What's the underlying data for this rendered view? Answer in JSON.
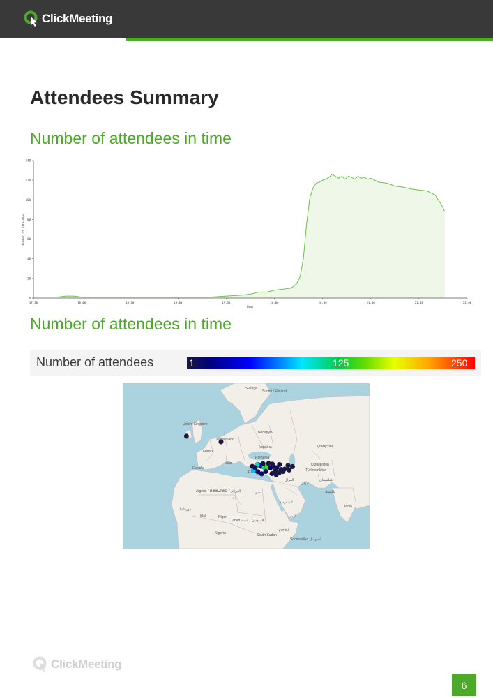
{
  "header": {
    "brand": "ClickMeeting",
    "accent_color": "#4ea82a",
    "bar_color": "#3a3939",
    "logo_icon": "clickmeeting-logo-icon"
  },
  "page": {
    "title": "Attendees Summary",
    "number": "6"
  },
  "sections": [
    {
      "heading": "Number of attendees in time"
    },
    {
      "heading": "Number of attendees in time"
    }
  ],
  "chart_data": {
    "type": "area",
    "title": "",
    "xlabel": "Hour",
    "ylabel": "Number of attendees",
    "x_ticks": [
      "17:30",
      "18:00",
      "18:30",
      "19:00",
      "19:30",
      "20:00",
      "20:30",
      "21:00",
      "21:30",
      "22:00"
    ],
    "y_ticks": [
      0,
      20,
      40,
      60,
      80,
      100,
      120,
      140
    ],
    "xlim": [
      "17:30",
      "22:00"
    ],
    "ylim": [
      0,
      140
    ],
    "grid": false,
    "line_color": "#6cc04a",
    "fill_color": "#eef7e8",
    "series": [
      {
        "x": [
          "17:45",
          "17:50",
          "17:55",
          "18:00",
          "18:10",
          "18:20",
          "18:30",
          "18:40",
          "18:50",
          "19:00",
          "19:10",
          "19:20",
          "19:30",
          "19:40",
          "19:45",
          "19:50",
          "19:55",
          "20:00",
          "20:05",
          "20:10",
          "20:12",
          "20:14",
          "20:16",
          "20:18",
          "20:20",
          "20:22",
          "20:24",
          "20:26",
          "20:28",
          "20:30",
          "20:32",
          "20:34",
          "20:36",
          "20:38",
          "20:40",
          "20:42",
          "20:44",
          "20:46",
          "20:48",
          "20:50",
          "20:52",
          "20:54",
          "20:56",
          "20:58",
          "21:00",
          "21:05",
          "21:10",
          "21:15",
          "21:20",
          "21:25",
          "21:30",
          "21:35",
          "21:40",
          "21:42",
          "21:44",
          "21:46"
        ],
        "values": [
          1,
          2,
          2,
          1,
          1,
          1,
          1,
          1,
          1,
          1,
          1,
          1,
          2,
          3,
          4,
          6,
          6,
          8,
          9,
          10,
          12,
          15,
          22,
          40,
          75,
          102,
          112,
          117,
          118,
          120,
          121,
          123,
          126,
          124,
          122,
          124,
          121,
          124,
          123,
          121,
          124,
          122,
          123,
          121,
          122,
          118,
          117,
          114,
          113,
          111,
          110,
          109,
          105,
          100,
          95,
          88
        ]
      }
    ]
  },
  "legend": {
    "label": "Number of attendees",
    "min": "1",
    "mid": "125",
    "max": "250",
    "colors": [
      "#1a1a3e",
      "#000080",
      "#0000ff",
      "#00e6ff",
      "#00cc44",
      "#66dd00",
      "#e8ff00",
      "#ffa500",
      "#ff0000"
    ]
  },
  "map": {
    "labels": {
      "sweden": "Sverige",
      "finland": "Suomi / Finland",
      "uk": "United Kingdom",
      "germany": "Deutschland",
      "france": "France",
      "belarus": "Беларусь",
      "ukraine": "Україна",
      "romania": "România",
      "italy": "Italia",
      "spain": "España",
      "kazakhstan": "Қазақстан",
      "uzbekistan": "O'zbekiston",
      "turkmenistan": "Türkmenistan",
      "algeria": "Algérie / ⵍⵣⵣⴰⵢⴻⵔ / الجزائر",
      "mali": "Mali",
      "niger": "Niger",
      "tchad": "Tchad تشاد",
      "sudan": "السودان",
      "nigeria": "Nigeria",
      "south_sudan": "South Sudan",
      "ethiopia": "ኢትዮጵያ",
      "somalia": "Soomaaliya الصومال",
      "saudi": "السعودية",
      "yemen": "اليمن",
      "iraq": "العراق",
      "iran": "ایران",
      "afghanistan": "افغانستان",
      "pakistan": "پاکستان",
      "india": "India",
      "egypt": "مصر",
      "libya": "ليبيا",
      "mauritania": "موريتانيا",
      "greece": "Ελλάς"
    },
    "points": [
      {
        "lon": -3.0,
        "lat": 53.5,
        "count": 1
      },
      {
        "lon": 12.5,
        "lat": 51.0,
        "count": 1
      },
      {
        "lon": 30.5,
        "lat": 40.2,
        "count": 2
      },
      {
        "lon": 29.3,
        "lat": 40.9,
        "count": 60
      },
      {
        "lon": 31.8,
        "lat": 39.8,
        "count": 110
      },
      {
        "lon": 33.0,
        "lat": 39.9,
        "count": 150
      },
      {
        "lon": 28.8,
        "lat": 41.0,
        "count": 105
      },
      {
        "lon": 34.6,
        "lat": 39.5,
        "count": 35
      },
      {
        "lon": 36.0,
        "lat": 40.2,
        "count": 20
      },
      {
        "lon": 37.5,
        "lat": 39.6,
        "count": 12
      },
      {
        "lon": 38.7,
        "lat": 41.0,
        "count": 8
      },
      {
        "lon": 39.5,
        "lat": 38.8,
        "count": 15
      },
      {
        "lon": 41.0,
        "lat": 39.0,
        "count": 6
      },
      {
        "lon": 43.0,
        "lat": 38.6,
        "count": 3
      },
      {
        "lon": 27.1,
        "lat": 38.4,
        "count": 90
      },
      {
        "lon": 30.7,
        "lat": 36.9,
        "count": 25
      },
      {
        "lon": 35.3,
        "lat": 37.0,
        "count": 10
      },
      {
        "lon": 32.5,
        "lat": 37.9,
        "count": 14
      },
      {
        "lon": 36.7,
        "lat": 38.2,
        "count": 4
      },
      {
        "lon": 40.2,
        "lat": 37.9,
        "count": 5
      },
      {
        "lon": 29.0,
        "lat": 37.8,
        "count": 18
      },
      {
        "lon": 26.5,
        "lat": 40.2,
        "count": 9
      },
      {
        "lon": 31.3,
        "lat": 41.4,
        "count": 7
      },
      {
        "lon": 42.5,
        "lat": 40.6,
        "count": 2
      },
      {
        "lon": 44.5,
        "lat": 40.1,
        "count": 1
      },
      {
        "lon": 37.2,
        "lat": 36.5,
        "count": 6
      },
      {
        "lon": 38.5,
        "lat": 37.3,
        "count": 3
      },
      {
        "lon": 33.8,
        "lat": 41.5,
        "count": 4
      },
      {
        "lon": 35.5,
        "lat": 41.2,
        "count": 3
      },
      {
        "lon": 27.8,
        "lat": 39.6,
        "count": 11
      }
    ]
  },
  "footer": {
    "brand": "ClickMeeting"
  }
}
